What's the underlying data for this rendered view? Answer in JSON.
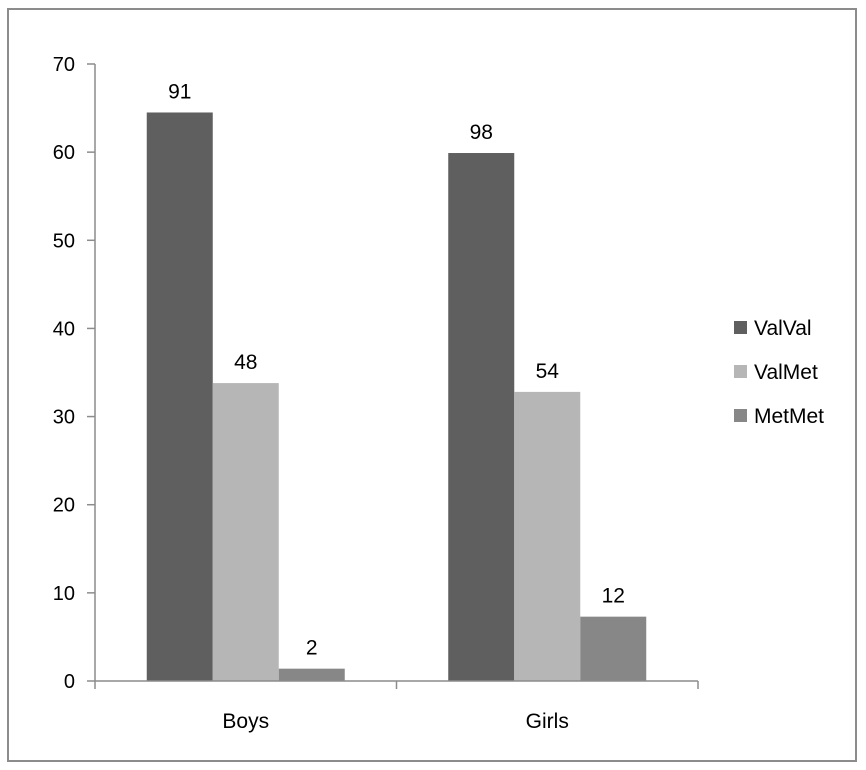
{
  "chart_data": {
    "type": "bar",
    "title": "",
    "xlabel": "",
    "ylabel": "",
    "categories": [
      "Boys",
      "Girls"
    ],
    "ylim": [
      0,
      70
    ],
    "yticks": [
      0,
      10,
      20,
      30,
      40,
      50,
      60,
      70
    ],
    "grid": false,
    "legend_position": "right",
    "series": [
      {
        "name": "ValVal",
        "color": "#5f5f5f",
        "values": [
          64.5,
          59.9
        ],
        "labels": [
          "91",
          "98"
        ]
      },
      {
        "name": "ValMet",
        "color": "#b6b6b6",
        "values": [
          33.8,
          32.8
        ],
        "labels": [
          "48",
          "54"
        ]
      },
      {
        "name": "MetMet",
        "color": "#878787",
        "values": [
          1.4,
          7.3
        ],
        "labels": [
          "2",
          "12"
        ]
      }
    ]
  }
}
